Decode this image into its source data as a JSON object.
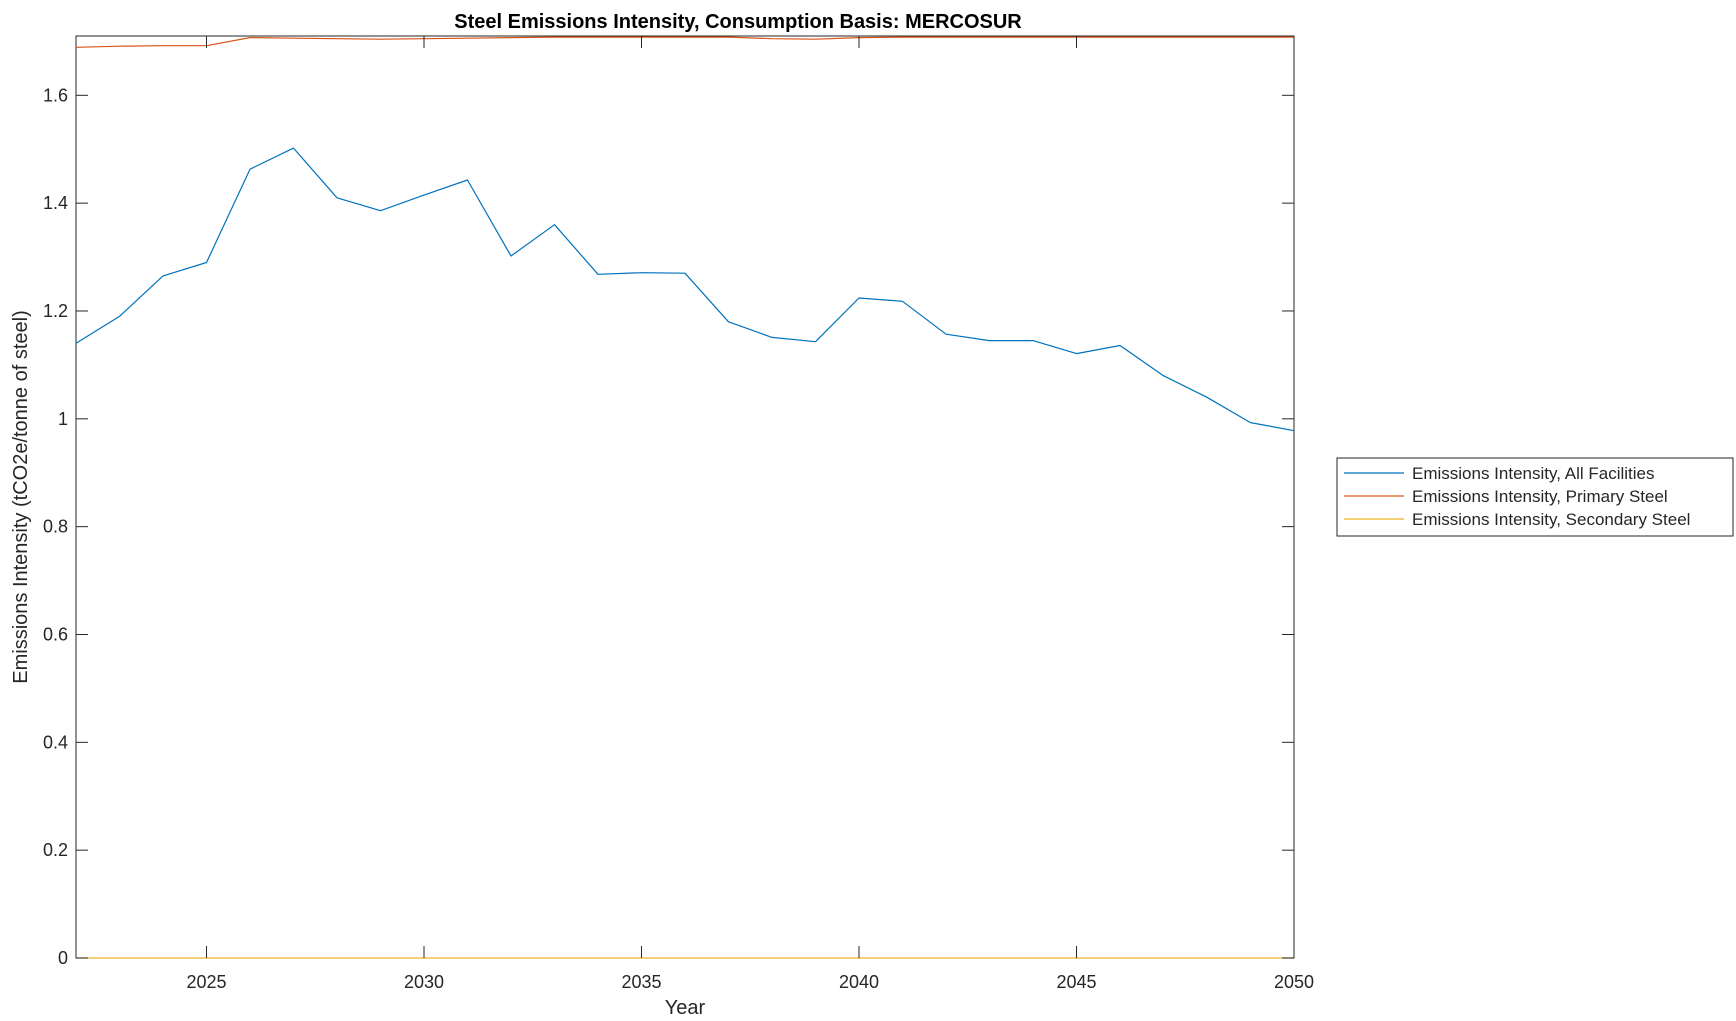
{
  "chart_data": {
    "type": "line",
    "title": "Steel Emissions Intensity, Consumption Basis: MERCOSUR",
    "xlabel": "Year",
    "ylabel": "Emissions Intensity (tCO2e/tonne of steel)",
    "xlim": [
      2022,
      2050
    ],
    "ylim": [
      0,
      1.71
    ],
    "xticks": [
      2025,
      2030,
      2035,
      2040,
      2045,
      2050
    ],
    "yticks": [
      0,
      0.2,
      0.4,
      0.6,
      0.8,
      1,
      1.2,
      1.4,
      1.6
    ],
    "grid": false,
    "legend_position": "outside-right",
    "x": [
      2022,
      2023,
      2024,
      2025,
      2026,
      2027,
      2028,
      2029,
      2030,
      2031,
      2032,
      2033,
      2034,
      2035,
      2036,
      2037,
      2038,
      2039,
      2040,
      2041,
      2042,
      2043,
      2044,
      2045,
      2046,
      2047,
      2048,
      2049,
      2050
    ],
    "series": [
      {
        "name": "Emissions Intensity, All Facilities",
        "color": "#0072BD",
        "values": [
          1.14,
          1.19,
          1.265,
          1.29,
          1.463,
          1.502,
          1.41,
          1.386,
          1.415,
          1.443,
          1.302,
          1.36,
          1.268,
          1.271,
          1.27,
          1.18,
          1.151,
          1.143,
          1.224,
          1.218,
          1.157,
          1.145,
          1.145,
          1.121,
          1.136,
          1.08,
          1.04,
          0.993,
          0.978
        ]
      },
      {
        "name": "Emissions Intensity, Primary Steel",
        "color": "#D95319",
        "values": [
          1.689,
          1.691,
          1.692,
          1.692,
          1.707,
          1.706,
          1.705,
          1.704,
          1.705,
          1.706,
          1.707,
          1.708,
          1.708,
          1.708,
          1.708,
          1.708,
          1.705,
          1.704,
          1.707,
          1.708,
          1.708,
          1.708,
          1.708,
          1.708,
          1.708,
          1.708,
          1.708,
          1.708,
          1.708
        ]
      },
      {
        "name": "Emissions Intensity, Secondary Steel",
        "color": "#EDB120",
        "values": [
          0,
          0,
          0,
          0,
          0,
          0,
          0,
          0,
          0,
          0,
          0,
          0,
          0,
          0,
          0,
          0,
          0,
          0,
          0,
          0,
          0,
          0,
          0,
          0,
          0,
          0,
          0,
          0,
          0
        ]
      }
    ]
  }
}
